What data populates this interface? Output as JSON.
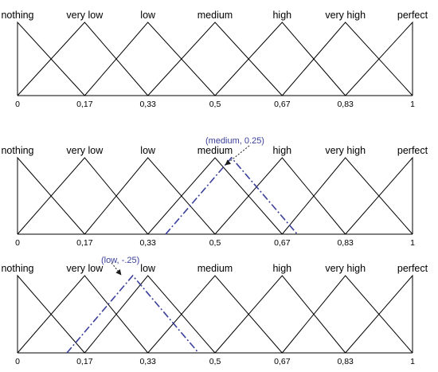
{
  "chart_data": {
    "type": "line",
    "colors": {
      "membership": "#000000",
      "translated": "#3a3f9a"
    },
    "panels": [
      {
        "terms": [
          {
            "label": "nothing",
            "peak": 0
          },
          {
            "label": "very low",
            "peak": 0.17
          },
          {
            "label": "low",
            "peak": 0.33
          },
          {
            "label": "medium",
            "peak": 0.5
          },
          {
            "label": "high",
            "peak": 0.67
          },
          {
            "label": "very high",
            "peak": 0.83
          },
          {
            "label": "perfect",
            "peak": 1
          }
        ],
        "ticks": [
          {
            "value": 0,
            "label": "0"
          },
          {
            "value": 0.17,
            "label": "0,17"
          },
          {
            "value": 0.33,
            "label": "0,33"
          },
          {
            "value": 0.5,
            "label": "0,5"
          },
          {
            "value": 0.67,
            "label": "0,67"
          },
          {
            "value": 0.83,
            "label": "0,83"
          },
          {
            "value": 1,
            "label": "1"
          }
        ],
        "xlim": [
          0,
          1
        ],
        "ylim": [
          0,
          1
        ],
        "translated": null
      },
      {
        "terms": [
          {
            "label": "nothing",
            "peak": 0
          },
          {
            "label": "very low",
            "peak": 0.17
          },
          {
            "label": "low",
            "peak": 0.33
          },
          {
            "label": "medium",
            "peak": 0.5
          },
          {
            "label": "high",
            "peak": 0.67
          },
          {
            "label": "very high",
            "peak": 0.83
          },
          {
            "label": "perfect",
            "peak": 1
          }
        ],
        "ticks": [
          {
            "value": 0,
            "label": "0"
          },
          {
            "value": 0.17,
            "label": "0,17"
          },
          {
            "value": 0.33,
            "label": "0,33"
          },
          {
            "value": 0.5,
            "label": "0,5"
          },
          {
            "value": 0.67,
            "label": "0,67"
          },
          {
            "value": 0.83,
            "label": "0,83"
          },
          {
            "value": 1,
            "label": "1"
          }
        ],
        "xlim": [
          0,
          1
        ],
        "ylim": [
          0,
          1
        ],
        "translated": {
          "label": "(medium, 0.25)",
          "points": [
            [
              0.375,
              0
            ],
            [
              0.5417,
              1
            ],
            [
              0.7083,
              0
            ]
          ]
        }
      },
      {
        "terms": [
          {
            "label": "nothing",
            "peak": 0
          },
          {
            "label": "very low",
            "peak": 0.17
          },
          {
            "label": "low",
            "peak": 0.33
          },
          {
            "label": "medium",
            "peak": 0.5
          },
          {
            "label": "high",
            "peak": 0.67
          },
          {
            "label": "very high",
            "peak": 0.83
          },
          {
            "label": "perfect",
            "peak": 1
          }
        ],
        "ticks": [
          {
            "value": 0,
            "label": "0"
          },
          {
            "value": 0.17,
            "label": "0,17"
          },
          {
            "value": 0.33,
            "label": "0,33"
          },
          {
            "value": 0.5,
            "label": "0,5"
          },
          {
            "value": 0.67,
            "label": "0,67"
          },
          {
            "value": 0.83,
            "label": "0,83"
          },
          {
            "value": 1,
            "label": "1"
          }
        ],
        "xlim": [
          0,
          1
        ],
        "ylim": [
          0,
          1
        ],
        "translated": {
          "label": "(low, -.25)",
          "points": [
            [
              0.125,
              0
            ],
            [
              0.2917,
              1
            ],
            [
              0.4583,
              0
            ]
          ]
        }
      }
    ]
  }
}
